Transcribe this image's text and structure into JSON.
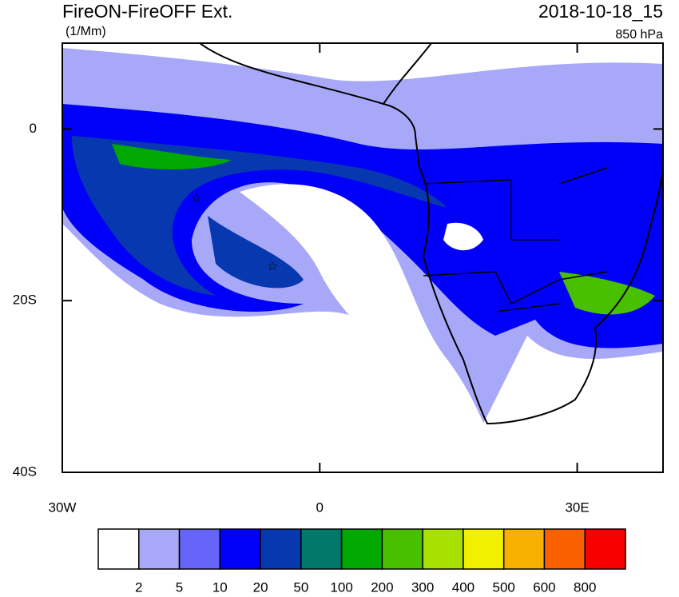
{
  "header": {
    "title": "FireON-FireOFF Ext.",
    "units": "(1/Mm)",
    "date": "2018-10-18_15",
    "level": "850 hPa"
  },
  "map": {
    "xlim": [
      -30,
      40
    ],
    "ylim": [
      -40,
      10
    ],
    "lon_ticks": [
      {
        "value": -30,
        "label": "30W"
      },
      0,
      {
        "value": 30,
        "label": "30E"
      }
    ],
    "lat_ticks": [
      0,
      {
        "value": -20,
        "label": "20S"
      },
      {
        "value": -40,
        "label": "40S"
      }
    ]
  },
  "colorbar": {
    "colors": [
      "#ffffff",
      "#a8a8f8",
      "#6464f8",
      "#0000f8",
      "#0838b0",
      "#00786a",
      "#00a800",
      "#48c000",
      "#a8e000",
      "#f0f000",
      "#f8b000",
      "#f86000",
      "#f80000"
    ],
    "labels": [
      2,
      5,
      10,
      20,
      50,
      100,
      200,
      300,
      400,
      500,
      600,
      800
    ]
  }
}
